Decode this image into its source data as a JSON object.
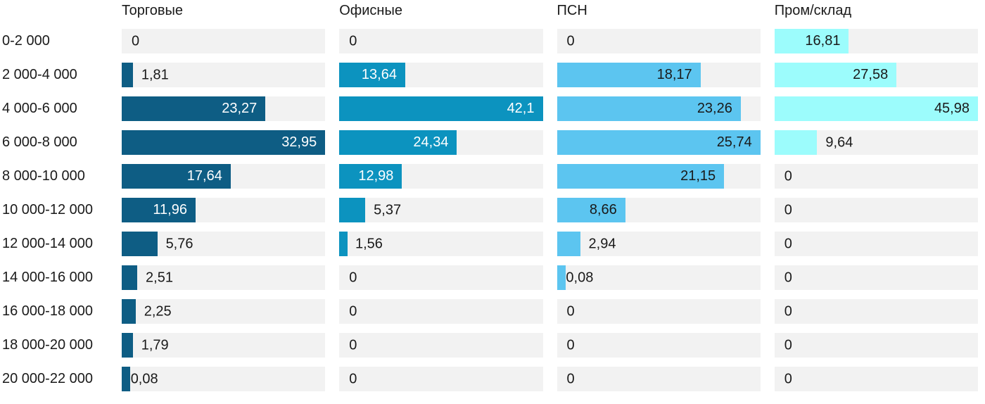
{
  "chart_data": {
    "type": "bar",
    "orientation": "horizontal",
    "scaling": "each column scaled to its own max value",
    "grid": false,
    "track_color": "#f2f2f2",
    "text_color": "#1a1a1a",
    "categories": [
      "0-2 000",
      "2 000-4 000",
      "4 000-6 000",
      "6 000-8 000",
      "8 000-10 000",
      "10 000-12 000",
      "12 000-14 000",
      "14 000-16 000",
      "16 000-18 000",
      "18 000-20 000",
      "20 000-22 000"
    ],
    "series": [
      {
        "name": "Торговые",
        "color": "#0e5d84",
        "label_color_inside": "#ffffff",
        "values": [
          0,
          1.81,
          23.27,
          32.95,
          17.64,
          11.96,
          5.76,
          2.51,
          2.25,
          1.79,
          0.08
        ],
        "labels": [
          "0",
          "1,81",
          "23,27",
          "32,95",
          "17,64",
          "11,96",
          "5,76",
          "2,51",
          "2,25",
          "1,79",
          "0,08"
        ]
      },
      {
        "name": "Офисные",
        "color": "#0c93bf",
        "label_color_inside": "#ffffff",
        "values": [
          0,
          13.64,
          42.1,
          24.34,
          12.98,
          5.37,
          1.56,
          0,
          0,
          0,
          0
        ],
        "labels": [
          "0",
          "13,64",
          "42,1",
          "24,34",
          "12,98",
          "5,37",
          "1,56",
          "0",
          "0",
          "0",
          "0"
        ]
      },
      {
        "name": "ПСН",
        "color": "#5cc5f0",
        "label_color_inside": "#1a1a1a",
        "values": [
          0,
          18.17,
          23.26,
          25.74,
          21.15,
          8.66,
          2.94,
          0.08,
          0,
          0,
          0
        ],
        "labels": [
          "0",
          "18,17",
          "23,26",
          "25,74",
          "21,15",
          "8,66",
          "2,94",
          "0,08",
          "0",
          "0",
          "0"
        ]
      },
      {
        "name": "Пром/склад",
        "color": "#9cfcfc",
        "label_color_inside": "#1a1a1a",
        "values": [
          16.81,
          27.58,
          45.98,
          9.64,
          0,
          0,
          0,
          0,
          0,
          0,
          0
        ],
        "labels": [
          "16,81",
          "27,58",
          "45,98",
          "9,64",
          "0",
          "0",
          "0",
          "0",
          "0",
          "0",
          "0"
        ]
      }
    ]
  }
}
